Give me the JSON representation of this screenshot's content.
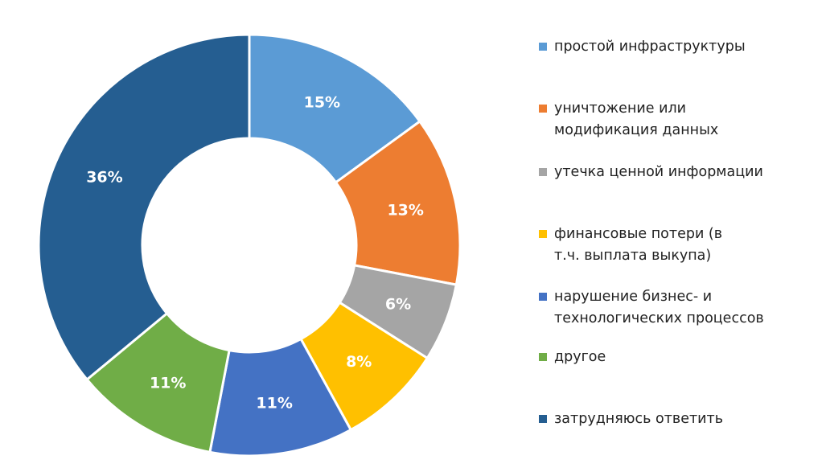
{
  "chart_data": {
    "type": "pie",
    "categories": [
      "простой инфраструктуры",
      "уничтожение или модификация данных",
      "утечка ценной информации",
      "финансовые потери (в т.ч. выплата выкупа)",
      "нарушение бизнес- и технологических процессов",
      "другое",
      "затрудняюсь ответить"
    ],
    "values": [
      15,
      13,
      6,
      8,
      11,
      11,
      36
    ],
    "data_labels": [
      "15%",
      "13%",
      "6%",
      "8%",
      "11%",
      "11%",
      "36%"
    ],
    "colors": [
      "#5B9BD5",
      "#ED7D31",
      "#A5A5A5",
      "#FFC000",
      "#4472C4",
      "#70AD47",
      "#255E91"
    ],
    "style": "donut",
    "legend_position": "right"
  }
}
